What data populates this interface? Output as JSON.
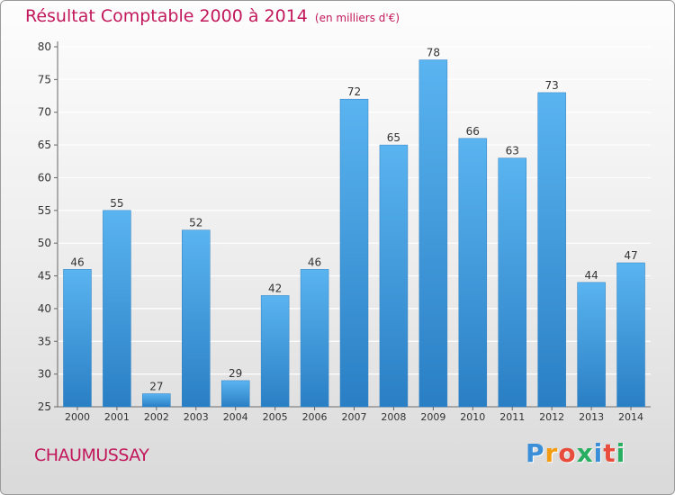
{
  "title": "Résultat Comptable 2000 à 2014",
  "subtitle": "(en milliers d'€)",
  "commune": "CHAUMUSSAY",
  "logo": {
    "text": "Proxiti",
    "colors": [
      "#3b8fd8",
      "#f39c12",
      "#e74c3c",
      "#27ae60",
      "#3b8fd8",
      "#e74c3c",
      "#27ae60"
    ]
  },
  "colors": {
    "bar": "#3d9de0",
    "bar_light": "#5ab4f0",
    "bar_dark": "#2a7fc4",
    "title": "#c2185b"
  },
  "chart_data": {
    "type": "bar",
    "categories": [
      "2000",
      "2001",
      "2002",
      "2003",
      "2004",
      "2005",
      "2006",
      "2007",
      "2008",
      "2009",
      "2010",
      "2011",
      "2012",
      "2013",
      "2014"
    ],
    "values": [
      46,
      55,
      27,
      52,
      29,
      42,
      46,
      72,
      65,
      78,
      66,
      63,
      73,
      44,
      47
    ],
    "ylim": [
      25,
      80
    ],
    "yticks": [
      25,
      30,
      35,
      40,
      45,
      50,
      55,
      60,
      65,
      70,
      75,
      80
    ],
    "grid": true,
    "data_labels": true
  }
}
